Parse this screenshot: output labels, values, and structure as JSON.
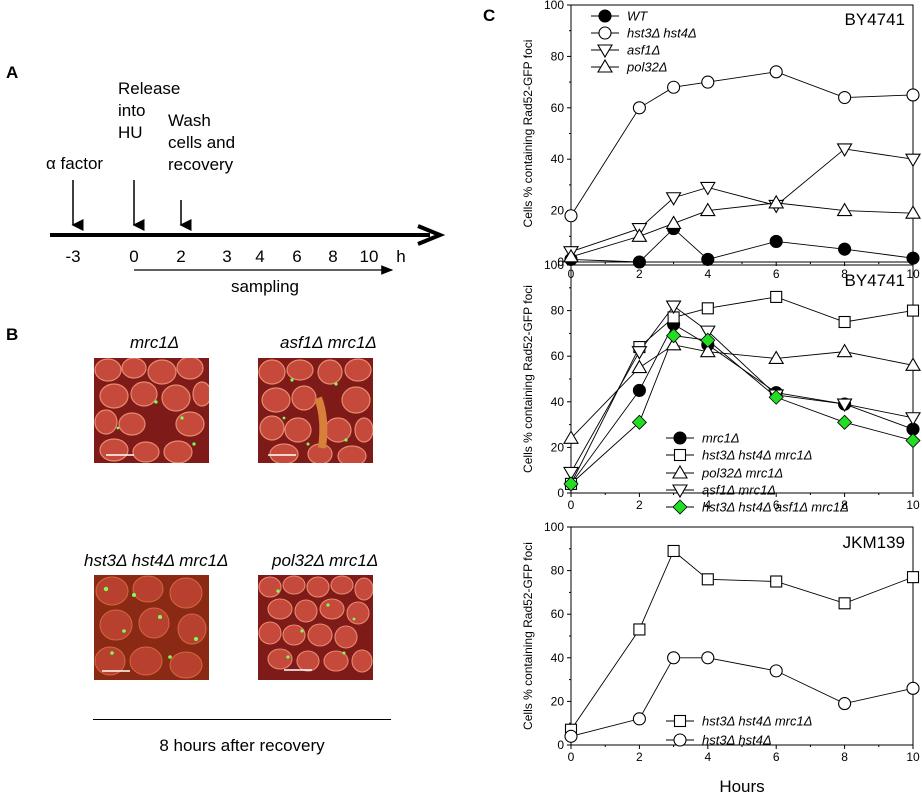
{
  "panel_labels": {
    "a": "A",
    "b": "B",
    "c": "C"
  },
  "timeline": {
    "alpha_label": "α  factor",
    "release_label": "Release\ninto\nHU",
    "wash_label": "Wash\ncells and\nrecovery",
    "ticks": [
      "-3",
      "0",
      "2",
      "3",
      "4",
      "6",
      "8",
      "10",
      "h"
    ],
    "sampling_label": "sampling"
  },
  "micrographs": {
    "titles": [
      "mrc1Δ",
      "asf1Δ mrc1Δ",
      "hst3Δ hst4Δ mrc1Δ",
      "pol32Δ mrc1Δ"
    ],
    "caption": "8 hours after recovery",
    "colors": {
      "background": "#8e1f1c",
      "cell": "#c64a3c",
      "foci": "#7dff5a"
    }
  },
  "chart_data": [
    {
      "type": "line",
      "annotation": "BY4741",
      "ylabel": "Cells % containing Rad52-GFP foci",
      "xlabel": "",
      "xlim": [
        0,
        10
      ],
      "ylim": [
        0,
        100
      ],
      "xticks": [
        "0",
        "2",
        "4",
        "6",
        "8",
        "10"
      ],
      "yticks": [
        "0",
        "20",
        "40",
        "60",
        "80",
        "100"
      ],
      "legend_position": "top-left",
      "series": [
        {
          "name": "WT",
          "marker": "circle-filled",
          "color": "#000000",
          "x": [
            0,
            2,
            3,
            4,
            6,
            8,
            10
          ],
          "y": [
            1,
            0,
            13,
            1,
            8,
            5,
            1.5
          ]
        },
        {
          "name": "hst3Δ hst4Δ",
          "marker": "circle-open",
          "color": "#ffffff",
          "x": [
            0,
            2,
            3,
            4,
            6,
            8,
            10
          ],
          "y": [
            18,
            60,
            68,
            70,
            74,
            64,
            65
          ]
        },
        {
          "name": "asf1Δ",
          "marker": "triangle-down-open",
          "color": "#ffffff",
          "x": [
            0,
            2,
            3,
            4,
            6,
            8,
            10
          ],
          "y": [
            4,
            13,
            25,
            29,
            22,
            44,
            40
          ]
        },
        {
          "name": "pol32Δ",
          "marker": "triangle-up-open",
          "color": "#ffffff",
          "x": [
            0,
            2,
            3,
            4,
            6,
            8,
            10
          ],
          "y": [
            2,
            10,
            15,
            20,
            23,
            20,
            19
          ]
        }
      ]
    },
    {
      "type": "line",
      "annotation": "BY4741",
      "ylabel": "Cells % containing Rad52-GFP foci",
      "xlabel": "",
      "xlim": [
        0,
        10
      ],
      "ylim": [
        0,
        100
      ],
      "xticks": [
        "0",
        "2",
        "4",
        "6",
        "8",
        "10"
      ],
      "yticks": [
        "0",
        "20",
        "40",
        "60",
        "80",
        "100"
      ],
      "legend_position": "bottom-right",
      "series": [
        {
          "name": "mrc1Δ",
          "marker": "circle-filled",
          "color": "#000000",
          "x": [
            0,
            2,
            3,
            4,
            6,
            8,
            10
          ],
          "y": [
            4,
            45,
            74,
            65,
            44,
            39,
            28
          ]
        },
        {
          "name": "hst3Δ hst4Δ mrc1Δ",
          "marker": "square-open",
          "color": "#ffffff",
          "x": [
            0,
            2,
            3,
            4,
            6,
            8,
            10
          ],
          "y": [
            4,
            64,
            77,
            81,
            86,
            75,
            80
          ]
        },
        {
          "name": "pol32Δ mrc1Δ",
          "marker": "triangle-up-open",
          "color": "#ffffff",
          "x": [
            0,
            2,
            3,
            4,
            6,
            8,
            10
          ],
          "y": [
            24,
            55,
            65,
            62,
            59,
            62,
            56
          ]
        },
        {
          "name": "asf1Δ mrc1Δ",
          "marker": "triangle-down-open",
          "color": "#ffffff",
          "x": [
            0,
            2,
            3,
            4,
            6,
            8,
            10
          ],
          "y": [
            9,
            62,
            82,
            71,
            43,
            39,
            33
          ]
        },
        {
          "name": "hst3Δ hst4Δ asf1Δ mrc1Δ",
          "marker": "diamond-filled",
          "color": "#22dd22",
          "x": [
            0,
            2,
            3,
            4,
            6,
            8,
            10
          ],
          "y": [
            4,
            31,
            69,
            67,
            42,
            31,
            23
          ]
        }
      ]
    },
    {
      "type": "line",
      "annotation": "JKM139",
      "ylabel": "Cells % containing Rad52-GFP foci",
      "xlabel": "Hours",
      "xlim": [
        0,
        10
      ],
      "ylim": [
        0,
        100
      ],
      "xticks": [
        "0",
        "2",
        "4",
        "6",
        "8",
        "10"
      ],
      "yticks": [
        "0",
        "20",
        "40",
        "60",
        "80",
        "100"
      ],
      "legend_position": "bottom-right",
      "series": [
        {
          "name": "hst3Δ hst4Δ mrc1Δ",
          "marker": "square-open",
          "color": "#ffffff",
          "x": [
            0,
            2,
            3,
            4,
            6,
            8,
            10
          ],
          "y": [
            7,
            53,
            89,
            76,
            75,
            65,
            77
          ]
        },
        {
          "name": "hst3Δ hst4Δ",
          "marker": "circle-open",
          "color": "#ffffff",
          "x": [
            0,
            2,
            3,
            4,
            6,
            8,
            10
          ],
          "y": [
            4,
            12,
            40,
            40,
            34,
            19,
            26
          ]
        }
      ]
    }
  ]
}
